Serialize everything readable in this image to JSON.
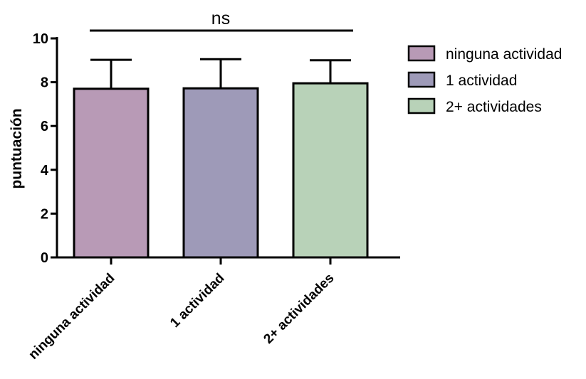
{
  "chart_data": {
    "type": "bar",
    "categories": [
      "ninguna actividad",
      "1 actividad",
      "2+ actividades"
    ],
    "values": [
      7.7,
      7.72,
      7.95
    ],
    "error_upper": [
      9.02,
      9.05,
      9.0
    ],
    "colors": [
      "#b89ab6",
      "#9e9ab8",
      "#b8d2b8"
    ],
    "ylabel": "puntuación",
    "ylim": [
      0,
      10
    ],
    "yticks": [
      "0",
      "2",
      "4",
      "6",
      "8",
      "10"
    ],
    "significance": {
      "label": "ns",
      "from": 0,
      "to": 2
    },
    "legend": {
      "position": "top-right",
      "entries": [
        "ninguna actividad",
        "1 actividad",
        "2+ actividades"
      ]
    },
    "grid": false
  }
}
